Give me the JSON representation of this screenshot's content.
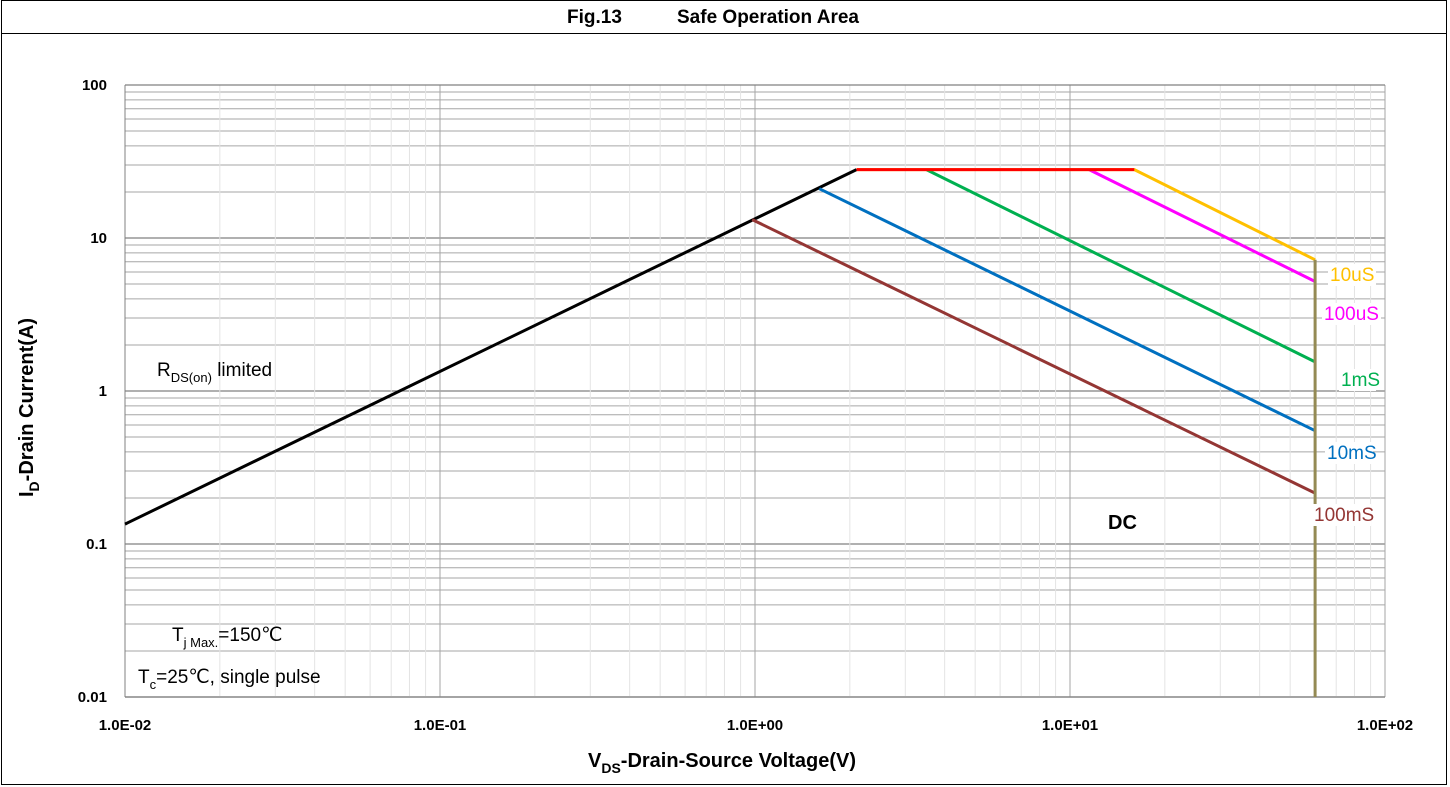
{
  "header": {
    "fig_label": "Fig.13",
    "title": "Safe Operation Area"
  },
  "chart_data": {
    "type": "line",
    "title": "Safe Operation Area",
    "x_scale": "log",
    "y_scale": "log",
    "xlim": [
      0.01,
      100
    ],
    "ylim": [
      0.01,
      100
    ],
    "grid": true,
    "x_ticks": [
      {
        "value": 0.01,
        "label": "1.0E-02"
      },
      {
        "value": 0.1,
        "label": "1.0E-01"
      },
      {
        "value": 1,
        "label": "1.0E+00"
      },
      {
        "value": 10,
        "label": "1.0E+01"
      },
      {
        "value": 100,
        "label": "1.0E+02"
      }
    ],
    "y_ticks": [
      {
        "value": 0.01,
        "label": "0.01"
      },
      {
        "value": 0.1,
        "label": "0.1"
      },
      {
        "value": 1,
        "label": "1"
      },
      {
        "value": 10,
        "label": "10"
      },
      {
        "value": 100,
        "label": "100"
      }
    ],
    "xlabel": {
      "main": "V",
      "sub": "DS",
      "rest": "-Drain-Source Voltage(V)"
    },
    "ylabel": {
      "main": "I",
      "sub": "D",
      "rest": "-Drain Current(A)"
    },
    "series": [
      {
        "name": "R_DS(on) limited",
        "color": "#000000",
        "points": [
          [
            0.01,
            0.135
          ],
          [
            2.1,
            28
          ]
        ]
      },
      {
        "name": "10uS",
        "color": "#ffc000",
        "points": [
          [
            2.1,
            28
          ],
          [
            16,
            28
          ],
          [
            60,
            7.2
          ]
        ]
      },
      {
        "name": "100uS",
        "color": "#ff00ff",
        "points": [
          [
            11.5,
            28
          ],
          [
            60,
            5.2
          ]
        ]
      },
      {
        "name": "1mS",
        "color": "#00b050",
        "points": [
          [
            3.5,
            28
          ],
          [
            60,
            1.55
          ]
        ]
      },
      {
        "name": "10mS",
        "color": "#0070c0",
        "points": [
          [
            1.6,
            21
          ],
          [
            60,
            0.55
          ]
        ]
      },
      {
        "name": "100mS",
        "color": "#943634",
        "points": [
          [
            0.98,
            13.2
          ],
          [
            60,
            0.215
          ]
        ]
      },
      {
        "name": "DC",
        "color": "#948a54",
        "points": [
          [
            60,
            7.2
          ],
          [
            60,
            0.01
          ]
        ]
      },
      {
        "name": "current limit",
        "color": "#ff0000",
        "points": [
          [
            2.1,
            28
          ],
          [
            16,
            28
          ]
        ]
      }
    ],
    "series_labels": [
      {
        "text": "10uS",
        "color": "#ffc000"
      },
      {
        "text": "100uS",
        "color": "#ff00ff"
      },
      {
        "text": "1mS",
        "color": "#00b050"
      },
      {
        "text": "10mS",
        "color": "#0070c0"
      },
      {
        "text": "100mS",
        "color": "#943634"
      },
      {
        "text": "DC",
        "color": "#000000"
      }
    ],
    "annotations": {
      "rds": {
        "main": "R",
        "sub": "DS(on)",
        "rest": " limited"
      },
      "tj": {
        "main": "T",
        "sub": "j Max.",
        "rest": "=150℃"
      },
      "tc": {
        "main": "T",
        "sub": "c",
        "rest": "=25℃, single pulse"
      }
    }
  }
}
